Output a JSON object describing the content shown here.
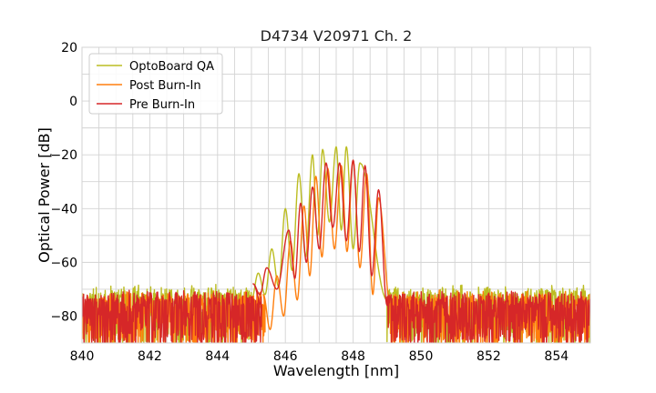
{
  "chart_data": {
    "type": "line",
    "title": "D4734 V20971 Ch. 2",
    "xlabel": "Wavelength [nm]",
    "ylabel": "Optical Power [dB]",
    "xlim": [
      840,
      855
    ],
    "ylim": [
      -90,
      20
    ],
    "xticks": [
      840,
      842,
      844,
      846,
      848,
      850,
      852,
      854
    ],
    "yticks": [
      20,
      0,
      -20,
      -40,
      -60,
      -80
    ],
    "grid": true,
    "legend_position": "top-left",
    "noise_floor": {
      "low": -90,
      "high": -72
    },
    "series": [
      {
        "name": "OptoBoard QA",
        "color": "#bcbd22",
        "noise_range": [
          840,
          845.0
        ],
        "noise_range_right": [
          849.0,
          855
        ],
        "noise_level": [
          -90,
          -70
        ],
        "peaks": [
          {
            "x": 845.2,
            "y": -64
          },
          {
            "x": 845.6,
            "y": -55
          },
          {
            "x": 846.0,
            "y": -40
          },
          {
            "x": 846.4,
            "y": -27
          },
          {
            "x": 846.8,
            "y": -20
          },
          {
            "x": 847.1,
            "y": -18
          },
          {
            "x": 847.5,
            "y": -17
          },
          {
            "x": 847.8,
            "y": -17
          },
          {
            "x": 848.2,
            "y": -23
          }
        ],
        "valleys": [
          {
            "x": 845.4,
            "y": -72
          },
          {
            "x": 845.8,
            "y": -69
          },
          {
            "x": 846.2,
            "y": -63
          },
          {
            "x": 846.6,
            "y": -58
          },
          {
            "x": 846.95,
            "y": -50
          },
          {
            "x": 847.3,
            "y": -45
          },
          {
            "x": 847.65,
            "y": -48
          },
          {
            "x": 848.0,
            "y": -55
          }
        ]
      },
      {
        "name": "Post Burn-In",
        "color": "#ff7f0e",
        "noise_range": [
          840,
          845.4
        ],
        "noise_range_right": [
          849.1,
          855
        ],
        "noise_level": [
          -90,
          -72
        ],
        "peaks": [
          {
            "x": 845.35,
            "y": -72
          },
          {
            "x": 845.75,
            "y": -65
          },
          {
            "x": 846.15,
            "y": -52
          },
          {
            "x": 846.55,
            "y": -39
          },
          {
            "x": 846.9,
            "y": -28
          },
          {
            "x": 847.25,
            "y": -25
          },
          {
            "x": 847.65,
            "y": -24
          },
          {
            "x": 848.0,
            "y": -22
          },
          {
            "x": 848.4,
            "y": -27
          },
          {
            "x": 848.75,
            "y": -36
          }
        ],
        "valleys": [
          {
            "x": 845.55,
            "y": -85
          },
          {
            "x": 845.95,
            "y": -80
          },
          {
            "x": 846.35,
            "y": -74
          },
          {
            "x": 846.72,
            "y": -65
          },
          {
            "x": 847.08,
            "y": -58
          },
          {
            "x": 847.45,
            "y": -55
          },
          {
            "x": 847.82,
            "y": -56
          },
          {
            "x": 848.2,
            "y": -62
          },
          {
            "x": 848.58,
            "y": -72
          }
        ]
      },
      {
        "name": "Pre Burn-In",
        "color": "#d62728",
        "noise_range": [
          840,
          845.3
        ],
        "noise_range_right": [
          849.0,
          855
        ],
        "noise_level": [
          -90,
          -72
        ],
        "peaks": [
          {
            "x": 845.05,
            "y": -68
          },
          {
            "x": 845.45,
            "y": -62
          },
          {
            "x": 846.1,
            "y": -48
          },
          {
            "x": 846.45,
            "y": -38
          },
          {
            "x": 846.8,
            "y": -32
          },
          {
            "x": 847.2,
            "y": -23
          },
          {
            "x": 847.6,
            "y": -23
          },
          {
            "x": 848.0,
            "y": -22
          },
          {
            "x": 848.35,
            "y": -24
          },
          {
            "x": 848.75,
            "y": -33
          }
        ],
        "valleys": [
          {
            "x": 845.25,
            "y": -72
          },
          {
            "x": 845.75,
            "y": -70
          },
          {
            "x": 846.28,
            "y": -66
          },
          {
            "x": 846.62,
            "y": -60
          },
          {
            "x": 847.0,
            "y": -55
          },
          {
            "x": 847.4,
            "y": -47
          },
          {
            "x": 847.8,
            "y": -52
          },
          {
            "x": 848.18,
            "y": -56
          },
          {
            "x": 848.55,
            "y": -65
          }
        ]
      }
    ]
  }
}
